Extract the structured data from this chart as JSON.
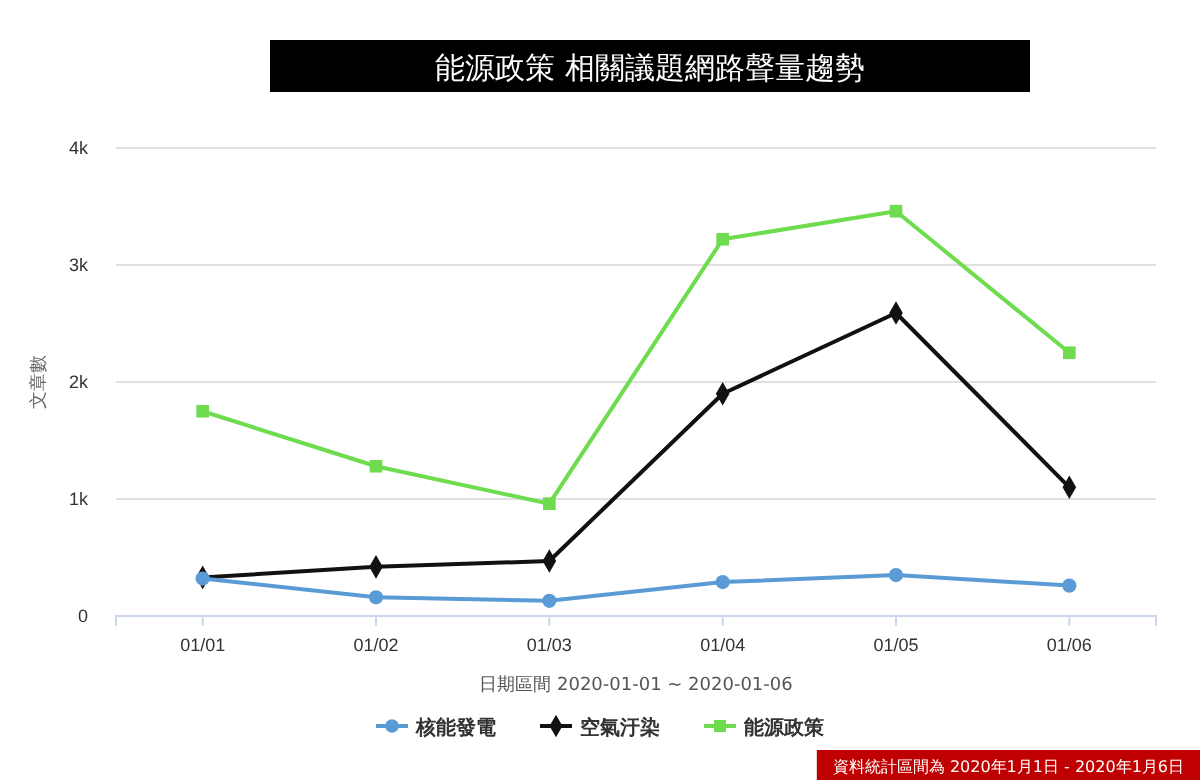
{
  "chart_data": {
    "type": "line",
    "title": "能源政策 相關議題網路聲量趨勢",
    "xlabel": "日期區間 2020-01-01 ~ 2020-01-06",
    "ylabel": "文章數",
    "categories": [
      "01/01",
      "01/02",
      "01/03",
      "01/04",
      "01/05",
      "01/06"
    ],
    "series": [
      {
        "name": "核能發電",
        "color": "#5b9bd5",
        "marker": "circle",
        "values": [
          320,
          160,
          130,
          290,
          350,
          260
        ]
      },
      {
        "name": "空氣汙染",
        "color": "#111111",
        "marker": "diamond",
        "values": [
          330,
          420,
          470,
          1900,
          2590,
          1100
        ]
      },
      {
        "name": "能源政策",
        "color": "#6fdc4f",
        "marker": "square",
        "values": [
          1750,
          1280,
          960,
          3220,
          3460,
          2250
        ]
      }
    ],
    "ylim": [
      0,
      4000
    ],
    "yticks": [
      {
        "value": 0,
        "label": "0"
      },
      {
        "value": 1000,
        "label": "1k"
      },
      {
        "value": 2000,
        "label": "2k"
      },
      {
        "value": 3000,
        "label": "3k"
      },
      {
        "value": 4000,
        "label": "4k"
      }
    ],
    "grid": "y",
    "legend": "bottom",
    "line_style": "solid",
    "annotations": [
      "資料統計區間為 2020年1月1日 - 2020年1月6日"
    ]
  }
}
